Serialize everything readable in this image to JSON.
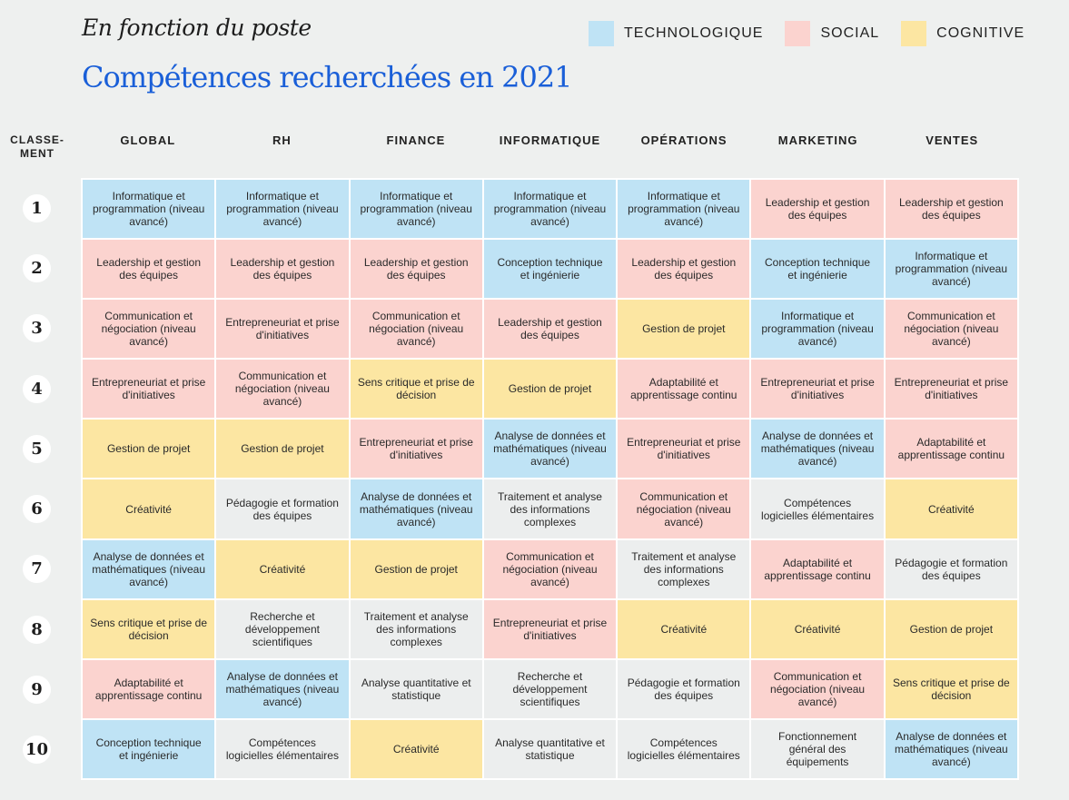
{
  "header": {
    "subtitle": "En fonction du poste",
    "title": "Compétences recherchées en 2021"
  },
  "legend": [
    {
      "key": "T",
      "label": "TECHNOLOGIQUE",
      "color": "#bfe3f5"
    },
    {
      "key": "S",
      "label": "SOCIAL",
      "color": "#fbd3cf"
    },
    {
      "key": "C",
      "label": "COGNITIVE",
      "color": "#fce6a2"
    }
  ],
  "neutral_color": "#eceeee",
  "chart_data": {
    "type": "table",
    "rank_header": "CLASSE-\nMENT",
    "columns": [
      "GLOBAL",
      "RH",
      "FINANCE",
      "INFORMATIQUE",
      "OPÉRATIONS",
      "MARKETING",
      "VENTES"
    ],
    "ranks": [
      "1",
      "2",
      "3",
      "4",
      "5",
      "6",
      "7",
      "8",
      "9",
      "10"
    ],
    "rows": [
      [
        [
          "Informatique et programmation (niveau avancé)",
          "T"
        ],
        [
          "Informatique et programmation (niveau avancé)",
          "T"
        ],
        [
          "Informatique et programmation (niveau avancé)",
          "T"
        ],
        [
          "Informatique et programmation (niveau avancé)",
          "T"
        ],
        [
          "Informatique et programmation (niveau avancé)",
          "T"
        ],
        [
          "Leadership et gestion des équipes",
          "S"
        ],
        [
          "Leadership et gestion des équipes",
          "S"
        ]
      ],
      [
        [
          "Leadership et gestion des équipes",
          "S"
        ],
        [
          "Leadership et gestion des équipes",
          "S"
        ],
        [
          "Leadership et gestion des équipes",
          "S"
        ],
        [
          "Conception technique et ingénierie",
          "T"
        ],
        [
          "Leadership et gestion des équipes",
          "S"
        ],
        [
          "Conception technique et ingénierie",
          "T"
        ],
        [
          "Informatique et programmation (niveau avancé)",
          "T"
        ]
      ],
      [
        [
          "Communication et négociation (niveau avancé)",
          "S"
        ],
        [
          "Entrepreneuriat et prise d'initiatives",
          "S"
        ],
        [
          "Communication et négociation (niveau avancé)",
          "S"
        ],
        [
          "Leadership et gestion des équipes",
          "S"
        ],
        [
          "Gestion de projet",
          "C"
        ],
        [
          "Informatique et programmation (niveau avancé)",
          "T"
        ],
        [
          "Communication et négociation (niveau avancé)",
          "S"
        ]
      ],
      [
        [
          "Entrepreneuriat et prise d'initiatives",
          "S"
        ],
        [
          "Communication et négociation (niveau avancé)",
          "S"
        ],
        [
          "Sens critique et prise de décision",
          "C"
        ],
        [
          "Gestion de projet",
          "C"
        ],
        [
          "Adaptabilité et apprentissage continu",
          "S"
        ],
        [
          "Entrepreneuriat et prise d'initiatives",
          "S"
        ],
        [
          "Entrepreneuriat et prise d'initiatives",
          "S"
        ]
      ],
      [
        [
          "Gestion de projet",
          "C"
        ],
        [
          "Gestion de projet",
          "C"
        ],
        [
          "Entrepreneuriat et prise d'initiatives",
          "S"
        ],
        [
          "Analyse de données et mathématiques (niveau avancé)",
          "T"
        ],
        [
          "Entrepreneuriat et prise d'initiatives",
          "S"
        ],
        [
          "Analyse de données et mathématiques (niveau avancé)",
          "T"
        ],
        [
          "Adaptabilité et apprentissage continu",
          "S"
        ]
      ],
      [
        [
          "Créativité",
          "C"
        ],
        [
          "Pédagogie et formation des équipes",
          "N"
        ],
        [
          "Analyse de données et mathématiques (niveau avancé)",
          "T"
        ],
        [
          "Traitement et analyse des informations complexes",
          "N"
        ],
        [
          "Communication et négociation (niveau avancé)",
          "S"
        ],
        [
          "Compétences logicielles élémentaires",
          "N"
        ],
        [
          "Créativité",
          "C"
        ]
      ],
      [
        [
          "Analyse de données et mathématiques (niveau avancé)",
          "T"
        ],
        [
          "Créativité",
          "C"
        ],
        [
          "Gestion de projet",
          "C"
        ],
        [
          "Communication et négociation (niveau avancé)",
          "S"
        ],
        [
          "Traitement et analyse des informations complexes",
          "N"
        ],
        [
          "Adaptabilité et apprentissage continu",
          "S"
        ],
        [
          "Pédagogie et formation des équipes",
          "N"
        ]
      ],
      [
        [
          "Sens critique et prise de décision",
          "C"
        ],
        [
          "Recherche et développement scientifiques",
          "N"
        ],
        [
          "Traitement et analyse des informations complexes",
          "N"
        ],
        [
          "Entrepreneuriat et prise d'initiatives",
          "S"
        ],
        [
          "Créativité",
          "C"
        ],
        [
          "Créativité",
          "C"
        ],
        [
          "Gestion de projet",
          "C"
        ]
      ],
      [
        [
          "Adaptabilité et apprentissage continu",
          "S"
        ],
        [
          "Analyse de données et mathématiques (niveau avancé)",
          "T"
        ],
        [
          "Analyse quantitative et statistique",
          "N"
        ],
        [
          "Recherche et développement scientifiques",
          "N"
        ],
        [
          "Pédagogie et formation des équipes",
          "N"
        ],
        [
          "Communication et négociation (niveau avancé)",
          "S"
        ],
        [
          "Sens critique et prise de décision",
          "C"
        ]
      ],
      [
        [
          "Conception technique et ingénierie",
          "T"
        ],
        [
          "Compétences logicielles élémentaires",
          "N"
        ],
        [
          "Créativité",
          "C"
        ],
        [
          "Analyse quantitative et statistique",
          "N"
        ],
        [
          "Compétences logicielles élémentaires",
          "N"
        ],
        [
          "Fonctionnement général des équipements",
          "N"
        ],
        [
          "Analyse de données et mathématiques (niveau avancé)",
          "T"
        ]
      ]
    ]
  }
}
